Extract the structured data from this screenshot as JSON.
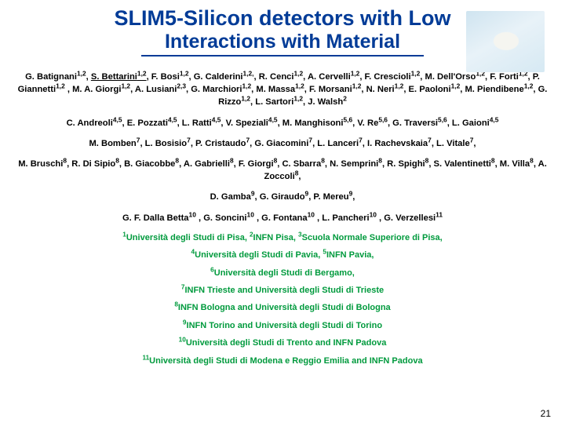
{
  "title": {
    "line1": "SLIM5-Silicon detectors with Low",
    "line2": "Interactions with Material",
    "color": "#003b97"
  },
  "author_groups": [
    {
      "html": "G. Batignani<sup>1,2</sup>, <span class='under'>S. Bettarini<sup>1,2</sup>,</span> F. Bosi<sup>1,2</sup>, G. Calderini<sup>1,2,</sup>, R. Cenci<sup>1,2</sup>, A. Cervelli<sup>1,2</sup>, F. Crescioli<sup>1,2</sup>, M. Dell'Orso<sup>1,2</sup>, F. Forti<sup>1,2</sup>, P. Giannetti<sup>1,2</sup> , M. A. Giorgi<sup>1,2</sup>, A. Lusiani<sup>2,3</sup>, G. Marchiori<sup>1,2</sup>, M. Massa<sup>1,2</sup>, F. Morsani<sup>1,2</sup>, N. Neri<sup>1,2</sup>, E. Paoloni<sup>1,2</sup>, M. Piendibene<sup>1,2</sup>, G. Rizzo<sup>1,2</sup>, L. Sartori<sup>1,2</sup>, J. Walsh<sup>2</sup>"
    },
    {
      "html": "C. Andreoli<sup>4,5</sup>, E. Pozzati<sup>4,5</sup>, L. Ratti<sup>4,5</sup>, V. Speziali<sup>4,5</sup>, M. Manghisoni<sup>5,6</sup>, V. Re<sup>5,6</sup>, G. Traversi<sup>5,6</sup>, L. Gaioni<sup>4,5</sup>"
    },
    {
      "html": "M. Bomben<sup>7</sup>, L. Bosisio<sup>7</sup>, P. Cristaudo<sup>7</sup>, G. Giacomini<sup>7</sup>, L. Lanceri<sup>7</sup>, I. Rachevskaia<sup>7</sup>, L. Vitale<sup>7</sup>,"
    },
    {
      "html": "M. Bruschi<sup>8</sup>, R. Di Sipio<sup>8</sup>, B. Giacobbe<sup>8</sup>, A. Gabrielli<sup>8</sup>, F. Giorgi<sup>8</sup>, C. Sbarra<sup>8</sup>, N. Semprini<sup>8</sup>, R. Spighi<sup>8</sup>, S. Valentinetti<sup>8</sup>, M. Villa<sup>8</sup>, A. Zoccoli<sup>8</sup>,"
    },
    {
      "html": "D. Gamba<sup>9</sup>, G. Giraudo<sup>9</sup>, P. Mereu<sup>9</sup>,"
    },
    {
      "html": "G. F. Dalla Betta<sup>10</sup> , G. Soncini<sup>10</sup> , G. Fontana<sup>10</sup> , L. Pancheri<sup>10</sup> , G. Verzellesi<sup>11</sup>"
    }
  ],
  "affiliations": [
    "<sup>1</sup>Università degli Studi di Pisa, <sup>2</sup>INFN Pisa, <sup>3</sup>Scuola Normale Superiore di Pisa,",
    "<sup>4</sup>Università degli Studi di Pavia, <sup>5</sup>INFN Pavia,",
    "<sup>6</sup>Università degli Studi di Bergamo,",
    "<sup>7</sup>INFN Trieste and Università degli Studi di Trieste",
    "<sup>8</sup>INFN Bologna and Università degli Studi di Bologna",
    "<sup>9</sup>INFN Torino and Università degli Studi di Torino",
    "<sup>10</sup>Università degli Studi di Trento and INFN Padova",
    "<sup>11</sup>Università degli Studi di Modena e Reggio Emilia and INFN Padova"
  ],
  "page_number": "21",
  "colors": {
    "title": "#003b97",
    "affiliation": "#009a3d",
    "text": "#000000",
    "background": "#ffffff"
  }
}
